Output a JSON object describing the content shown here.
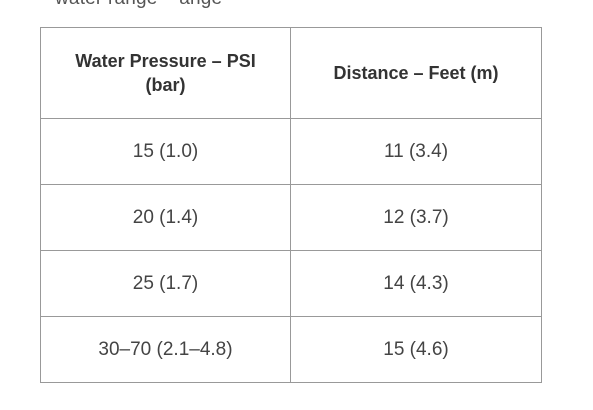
{
  "clipped_heading": "water range – ange",
  "table": {
    "headers": [
      "Water Pressure – PSI (bar)",
      "Distance – Feet (m)"
    ],
    "rows": [
      [
        "15 (1.0)",
        "11 (3.4)"
      ],
      [
        "20 (1.4)",
        "12 (3.7)"
      ],
      [
        "25 (1.7)",
        "14 (4.3)"
      ],
      [
        "30–70 (2.1–4.8)",
        "15 (4.6)"
      ]
    ]
  }
}
